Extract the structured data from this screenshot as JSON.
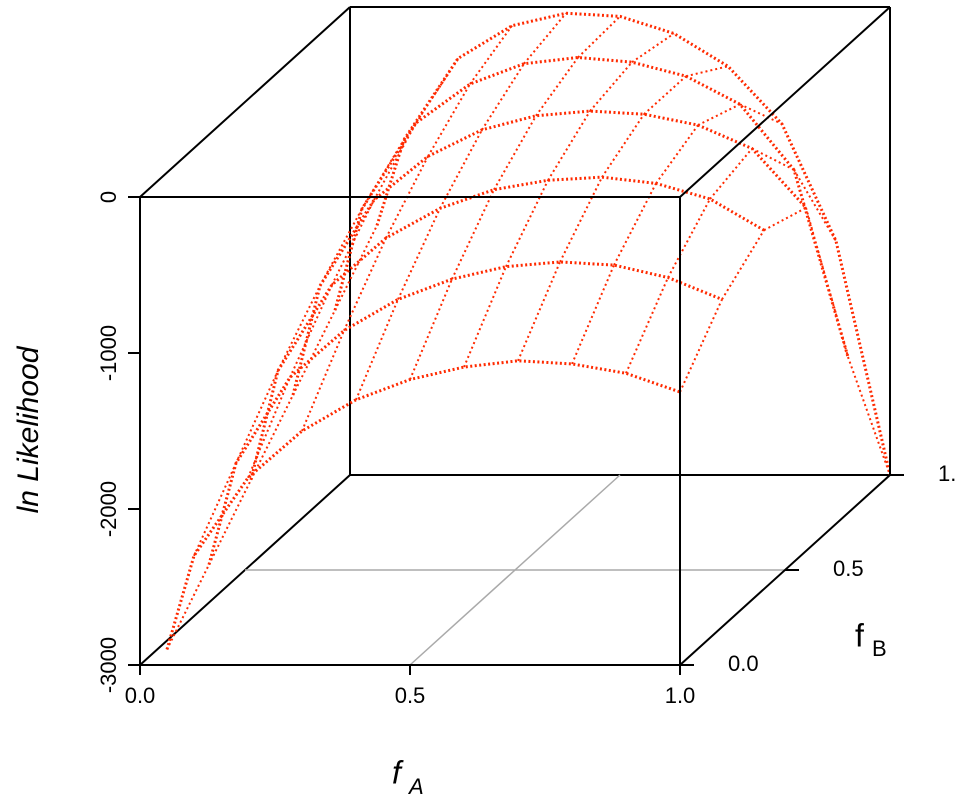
{
  "chart_data": {
    "type": "surface3d",
    "xlabel": "f",
    "xlabel_subscript": "A",
    "ylabel": "f",
    "ylabel_subscript": "B",
    "zlabel": "ln Likelihood",
    "x": [
      0.05,
      0.1,
      0.2,
      0.3,
      0.4,
      0.5,
      0.6,
      0.7,
      0.8,
      0.9,
      1.0
    ],
    "series": [
      {
        "fB": 0,
        "values": [
          -2900,
          -2300,
          -1800,
          -1500,
          -1300,
          -1170,
          -1090,
          -1050,
          -1070,
          -1130,
          -1250
        ]
      },
      {
        "fB": 0.2,
        "values": [
          -2600,
          -1950,
          -1400,
          -1100,
          -900,
          -770,
          -690,
          -660,
          -680,
          -760,
          -900
        ]
      },
      {
        "fB": 0.4,
        "values": [
          -2300,
          -1600,
          -1050,
          -750,
          -560,
          -440,
          -380,
          -360,
          -400,
          -500,
          -700
        ]
      },
      {
        "fB": 0.6,
        "values": [
          -2000,
          -1300,
          -750,
          -470,
          -300,
          -210,
          -180,
          -200,
          -270,
          -420,
          -800
        ]
      },
      {
        "fB": 0.8,
        "values": [
          -1700,
          -1050,
          -500,
          -250,
          -120,
          -80,
          -110,
          -200,
          -380,
          -800,
          -2000
        ]
      },
      {
        "fB": 1.0,
        "values": [
          -1400,
          -850,
          -330,
          -120,
          -40,
          -60,
          -170,
          -380,
          -750,
          -1500,
          -3000
        ]
      }
    ],
    "color": "#ff2a00",
    "xlim": [
      0,
      1
    ],
    "ylim": [
      0,
      1
    ],
    "zlim": [
      -3000,
      0
    ],
    "xticks": [
      {
        "value": 0,
        "label": "0.0"
      },
      {
        "value": 0.5,
        "label": "0.5"
      },
      {
        "value": 1,
        "label": "1.0"
      }
    ],
    "yticks": [
      {
        "value": 0,
        "label": "0.0"
      },
      {
        "value": 0.5,
        "label": "0.5"
      },
      {
        "value": 1,
        "label": "1."
      }
    ],
    "zticks": [
      -3000,
      -2000,
      -1000,
      0
    ],
    "grid": true
  }
}
